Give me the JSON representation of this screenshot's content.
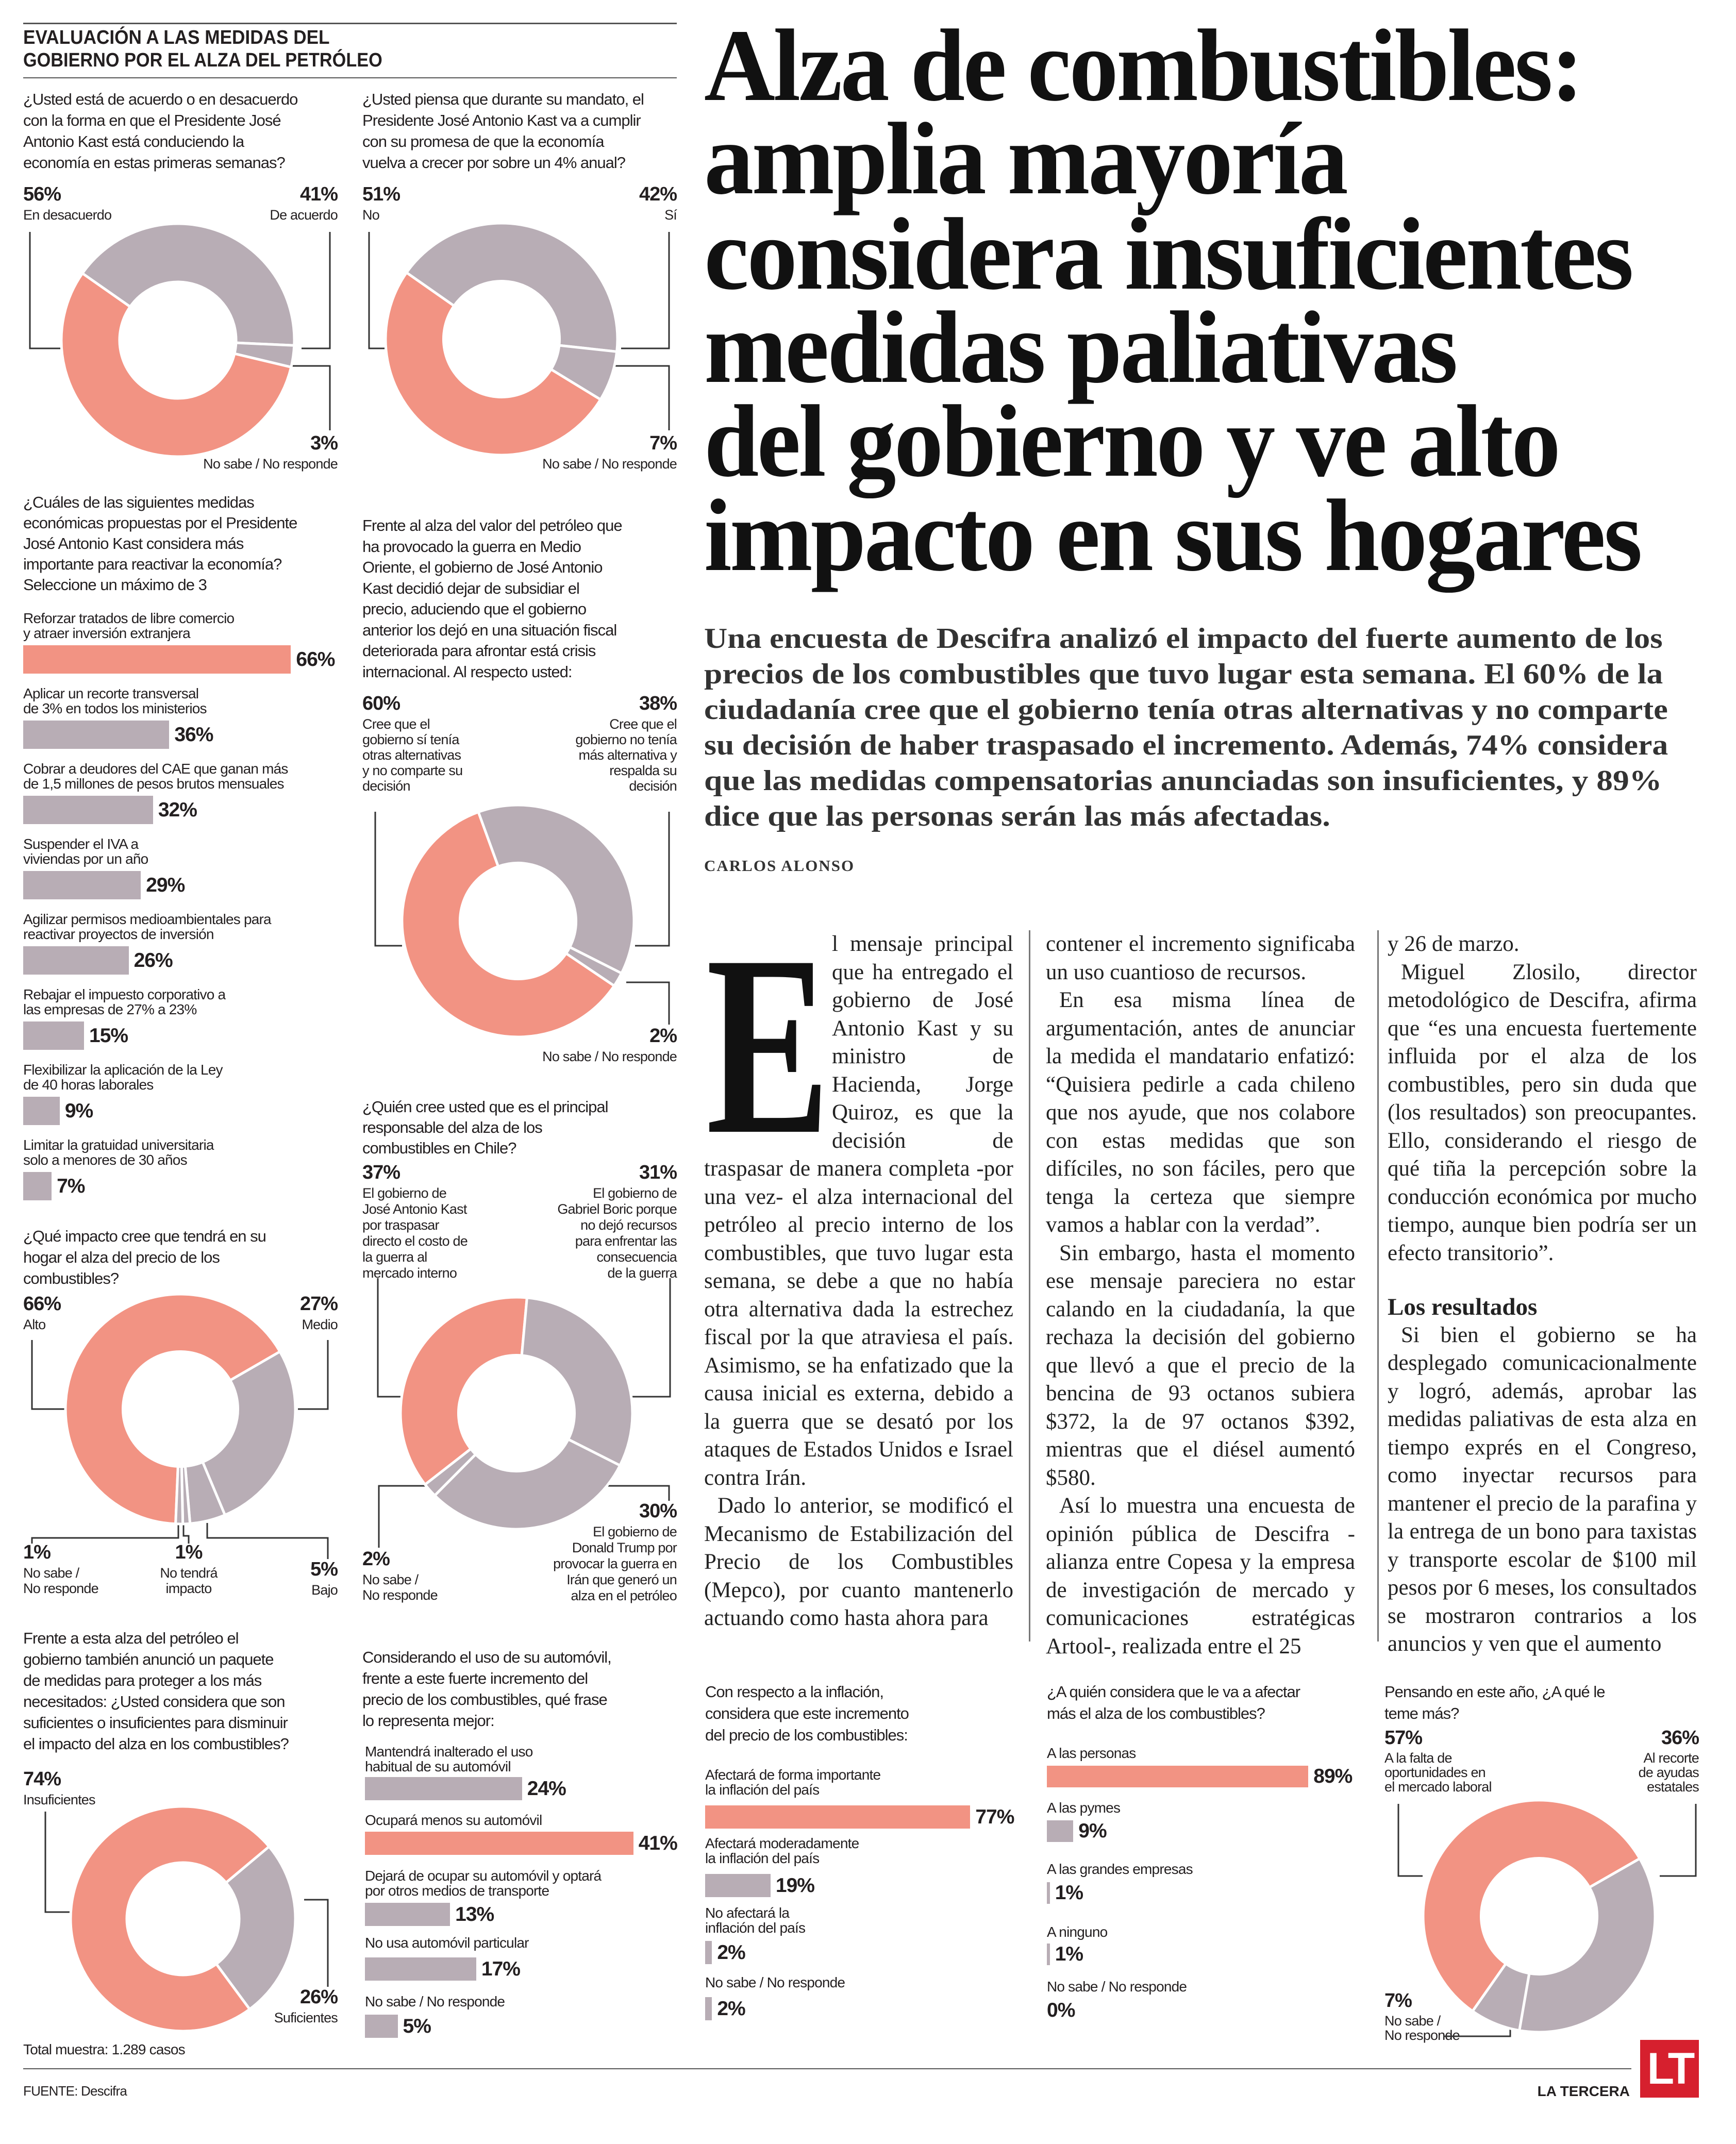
{
  "section_header": {
    "lines": [
      "EVALUACIÓN A LAS MEDIDAS DEL",
      "GOBIERNO POR EL ALZA DEL PETRÓLEO"
    ]
  },
  "article": {
    "headline_lines": [
      "Alza de combustibles:",
      "amplia mayoría",
      "considera insuficientes",
      "medidas paliativas",
      "del gobierno y ve alto",
      "impacto en sus hogares"
    ],
    "dek_lines": [
      "Una encuesta de Descifra analizó el impacto del fuerte aumento de los",
      "precios de los combustibles que tuvo lugar esta semana. El 60% de la",
      "ciudadanía cree que el gobierno tenía otras alternativas y no comparte",
      "su decisión de haber traspasado el incremento. Además, 74% considera",
      "que las medidas compensatorias anunciadas son insuficientes, y 89%",
      "dice que las personas serán las más afectadas."
    ],
    "byline": "CARLOS ALONSO",
    "dropcap": "E",
    "subhead": "Los resultados",
    "columns": [
      [
        "l mensaje principal que ha entregado el gobierno de José Antonio Kast y su ministro de Hacienda, Jorge Quiroz, es que la decisión de traspasar de manera completa -por una vez- el alza internacional del petróleo al precio interno de los combustibles, que tuvo lugar esta semana, se debe a que no había otra alternativa dada la estrechez fiscal por la que atraviesa el país. Asimismo, se ha enfatizado que la causa inicial es externa, debido a la guerra que se desató por los ataques de Estados Unidos e Israel contra Irán.",
        "Dado lo anterior, se modificó el Mecanismo de Estabilización del Precio de los Combustibles (Mepco), por cuanto mantenerlo actuando como hasta ahora para"
      ],
      [
        "contener el incremento significaba un uso cuantioso de recursos.",
        "En esa misma línea de argumentación, antes de anunciar la medida el mandatario enfatizó: “Quisiera pedirle a cada chileno que nos ayude, que nos colabore con estas medidas que son difíciles, no son fáciles, pero que tenga la certeza que siempre vamos a hablar con la verdad”.",
        "Sin embargo, hasta el momento ese mensaje pareciera no estar calando en la ciudadanía, la que rechaza la decisión del gobierno que llevó a que el precio de la bencina de 93 octanos subiera $372, la de 97 octanos $392, mientras que el diésel aumentó $580.",
        "Así lo muestra una encuesta de opinión pública de Descifra -alianza entre Copesa y la empresa de investigación de mercado y comunicaciones estratégicas Artool-, realizada entre el 25"
      ],
      [
        "y 26 de marzo.",
        "Miguel Zlosilo, director metodológico de Descifra, afirma que “es una encuesta fuertemente influida por el alza de los combustibles, pero sin duda que (los resultados) son preocupantes. Ello, considerando el riesgo de qué tiña la percepción sobre la conducción económica por mucho tiempo, aunque bien podría ser un efecto transitorio”.",
        "Si bien el gobierno se ha desplegado comunicacionalmente y logró, además, aprobar las medidas paliativas de esta alza en tiempo exprés en el Congreso, como inyectar recursos para mantener el precio de la parafina y la entrega de un bono para taxistas y transporte escolar de $100 mil pesos por 6 meses, los consultados se mostraron contrarios a los anuncios y ven que el aumento"
      ]
    ]
  },
  "infographic": {
    "sample": "Total muestra: 1.289 casos",
    "source": "FUENTE: Descifra"
  },
  "brand": {
    "name": "LA TERCERA",
    "logo_text": "LT",
    "color": "#d6202e"
  },
  "colors": {
    "highlight": "#f29383",
    "neutral": "#b8adb5"
  },
  "chart_data": [
    {
      "type": "pie",
      "variant": "donut",
      "title": "¿Usted está de acuerdo o en desacuerdo\ncon la forma en que el Presidente José\nAntonio Kast está conduciendo la\neconomía en estas primeras semanas?",
      "slices": [
        {
          "label": "De acuerdo",
          "value": 41,
          "color": "#b8adb5"
        },
        {
          "label": "No sabe / No responde",
          "value": 3,
          "color": "#b8adb5"
        },
        {
          "label": "En desacuerdo",
          "value": 56,
          "color": "#f29383"
        }
      ]
    },
    {
      "type": "pie",
      "variant": "donut",
      "title": "¿Usted piensa que durante su mandato, el\nPresidente José Antonio Kast va a cumplir\ncon su promesa de que la economía\nvuelva a crecer por sobre un 4% anual?",
      "slices": [
        {
          "label": "Sí",
          "value": 42,
          "color": "#b8adb5"
        },
        {
          "label": "No sabe / No responde",
          "value": 7,
          "color": "#b8adb5"
        },
        {
          "label": "No",
          "value": 51,
          "color": "#f29383"
        }
      ]
    },
    {
      "type": "bar",
      "orientation": "horizontal",
      "title": "¿Cuáles de las siguientes medidas\neconómicas propuestas por el Presidente\nJosé Antonio Kast considera más\nimportante para reactivar la economía?\nSeleccione un máximo de 3",
      "categories": [
        "Reforzar tratados de libre comercio\ny atraer inversión extranjera",
        "Aplicar un recorte transversal\nde 3% en todos los ministerios",
        "Cobrar a deudores del CAE que ganan más\nde 1,5 millones de pesos brutos mensuales",
        "Suspender el IVA a\nviviendas por un año",
        "Agilizar permisos medioambientales para\nreactivar proyectos de inversión",
        "Rebajar el impuesto corporativo a\nlas empresas de 27% a 23%",
        "Flexibilizar la aplicación de la Ley\nde 40 horas laborales",
        "Limitar la gratuidad universitaria\nsolo a menores de 30 años"
      ],
      "values": [
        66,
        36,
        32,
        29,
        26,
        15,
        9,
        7
      ],
      "unit": "%",
      "colors": [
        "#f29383",
        "#b8adb5",
        "#b8adb5",
        "#b8adb5",
        "#b8adb5",
        "#b8adb5",
        "#b8adb5",
        "#b8adb5"
      ]
    },
    {
      "type": "pie",
      "variant": "donut",
      "title": "Frente al alza del valor del petróleo que\nha provocado la guerra en Medio\nOriente, el gobierno de José Antonio\nKast decidió dejar de subsidiar el\nprecio, aduciendo que el gobierno\nanterior los dejó en una situación fiscal\ndeteriorada para afrontar está crisis\ninternacional. Al respecto usted:",
      "slices": [
        {
          "label": "Cree que el\ngobierno no tenía\nmás alternativa y\nrespalda su\ndecisión",
          "value": 38,
          "color": "#b8adb5"
        },
        {
          "label": "No sabe / No responde",
          "value": 2,
          "color": "#b8adb5"
        },
        {
          "label": "Cree que el\ngobierno sí tenía\notras alternativas\ny no comparte su\ndecisión",
          "value": 60,
          "color": "#f29383"
        }
      ]
    },
    {
      "type": "pie",
      "variant": "donut",
      "title": "¿Qué impacto cree que tendrá en su\nhogar el alza del precio de los\ncombustibles?",
      "slices": [
        {
          "label": "Alto",
          "value": 66,
          "color": "#f29383"
        },
        {
          "label": "Medio",
          "value": 27,
          "color": "#b8adb5"
        },
        {
          "label": "Bajo",
          "value": 5,
          "color": "#b8adb5"
        },
        {
          "label": "No tendrá\nimpacto",
          "value": 1,
          "color": "#b8adb5"
        },
        {
          "label": "No sabe /\nNo responde",
          "value": 1,
          "color": "#b8adb5"
        }
      ]
    },
    {
      "type": "pie",
      "variant": "donut",
      "title": "¿Quién cree usted que es el principal\nresponsable del alza de los\ncombustibles en Chile?",
      "slices": [
        {
          "label": "El gobierno de\nJosé Antonio Kast\npor traspasar\ndirecto el costo de\nla guerra al\nmercado interno",
          "value": 37,
          "color": "#f29383"
        },
        {
          "label": "El gobierno de\nGabriel Boric porque\nno dejó recursos\npara enfrentar las\nconsecuencia\nde la guerra",
          "value": 31,
          "color": "#b8adb5"
        },
        {
          "label": "El gobierno de\nDonald Trump por\nprovocar la guerra en\nIrán que generó un\nalza en el petróleo",
          "value": 30,
          "color": "#b8adb5"
        },
        {
          "label": "No sabe /\nNo responde",
          "value": 2,
          "color": "#b8adb5"
        }
      ]
    },
    {
      "type": "pie",
      "variant": "donut",
      "title": "Frente a esta alza del petróleo el\ngobierno también anunció un paquete\nde medidas para proteger a los más\nnecesitados: ¿Usted considera que son\nsuficientes o insuficientes para disminuir\nel impacto del alza en los combustibles?",
      "slices": [
        {
          "label": "Suficientes",
          "value": 26,
          "color": "#b8adb5"
        },
        {
          "label": "Insuficientes",
          "value": 74,
          "color": "#f29383"
        }
      ]
    },
    {
      "type": "bar",
      "orientation": "horizontal",
      "title": "Considerando el uso de su automóvil,\nfrente a este fuerte incremento del\nprecio de los combustibles, qué frase\nlo representa mejor:",
      "categories": [
        "Mantendrá inalterado el uso\nhabitual de su automóvil",
        "Ocupará menos su automóvil",
        "Dejará de ocupar su automóvil y optará\npor otros medios de transporte",
        "No usa automóvil particular",
        "No sabe / No responde"
      ],
      "values": [
        24,
        41,
        13,
        17,
        5
      ],
      "unit": "%",
      "colors": [
        "#b8adb5",
        "#f29383",
        "#b8adb5",
        "#b8adb5",
        "#b8adb5"
      ]
    },
    {
      "type": "bar",
      "orientation": "horizontal",
      "title": "Con respecto a la inflación,\nconsidera que este incremento\ndel precio de los combustibles:",
      "categories": [
        "Afectará de forma importante\nla inflación del país",
        "Afectará moderadamente\nla inflación del país",
        "No afectará la\ninflación del país",
        "No sabe / No responde"
      ],
      "values": [
        77,
        19,
        2,
        2
      ],
      "unit": "%",
      "colors": [
        "#f29383",
        "#b8adb5",
        "#b8adb5",
        "#b8adb5"
      ]
    },
    {
      "type": "bar",
      "orientation": "horizontal",
      "title": "¿A quién considera que le va a afectar\nmás el alza de los combustibles?",
      "categories": [
        "A las personas",
        "A las pymes",
        "A las grandes empresas",
        "A ninguno",
        "No sabe / No responde"
      ],
      "values": [
        89,
        9,
        1,
        1,
        0
      ],
      "unit": "%",
      "colors": [
        "#f29383",
        "#b8adb5",
        "#b8adb5",
        "#b8adb5",
        "#b8adb5"
      ]
    },
    {
      "type": "pie",
      "variant": "donut",
      "title": "Pensando en este año, ¿A qué le\nteme más?",
      "slices": [
        {
          "label": "A la falta de\noportunidades en\nel mercado laboral",
          "value": 57,
          "color": "#f29383"
        },
        {
          "label": "Al recorte\nde ayudas\nestatales",
          "value": 36,
          "color": "#b8adb5"
        },
        {
          "label": "No sabe /\nNo responde",
          "value": 7,
          "color": "#b8adb5"
        }
      ]
    }
  ]
}
